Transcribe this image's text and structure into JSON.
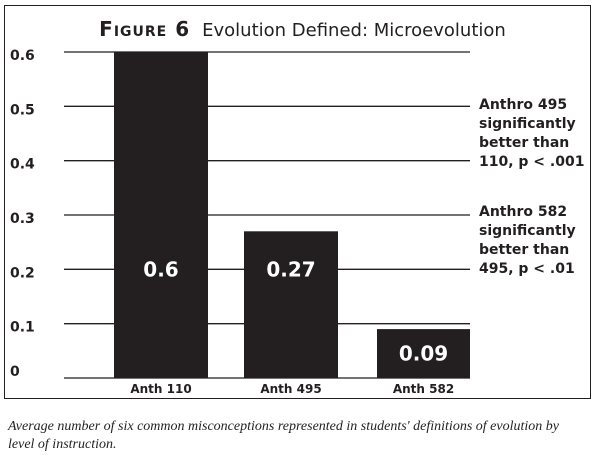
{
  "chart_data": {
    "type": "bar",
    "title_prefix": "Figure 6",
    "title": "Evolution Defined: Microevolution",
    "categories": [
      "Anth 110",
      "Anth 495",
      "Anth 582"
    ],
    "values": [
      0.6,
      0.27,
      0.09
    ],
    "data_labels": [
      "0.6",
      "0.27",
      "0.09"
    ],
    "ylim": [
      0,
      0.6
    ],
    "yticks": [
      "0",
      "0.1",
      "0.2",
      "0.3",
      "0.4",
      "0.5",
      "0.6"
    ],
    "grid": true,
    "bar_color": "#231f20",
    "annotations": [
      {
        "text": "Anthro 495\nsignificantly\nbetter than\n110, p < .001"
      },
      {
        "text": "Anthro 582\nsignificantly\nbetter than\n495, p < .01"
      }
    ],
    "caption": "Average number of six common misconceptions represented in students' definitions of evolution by level of instruction."
  }
}
